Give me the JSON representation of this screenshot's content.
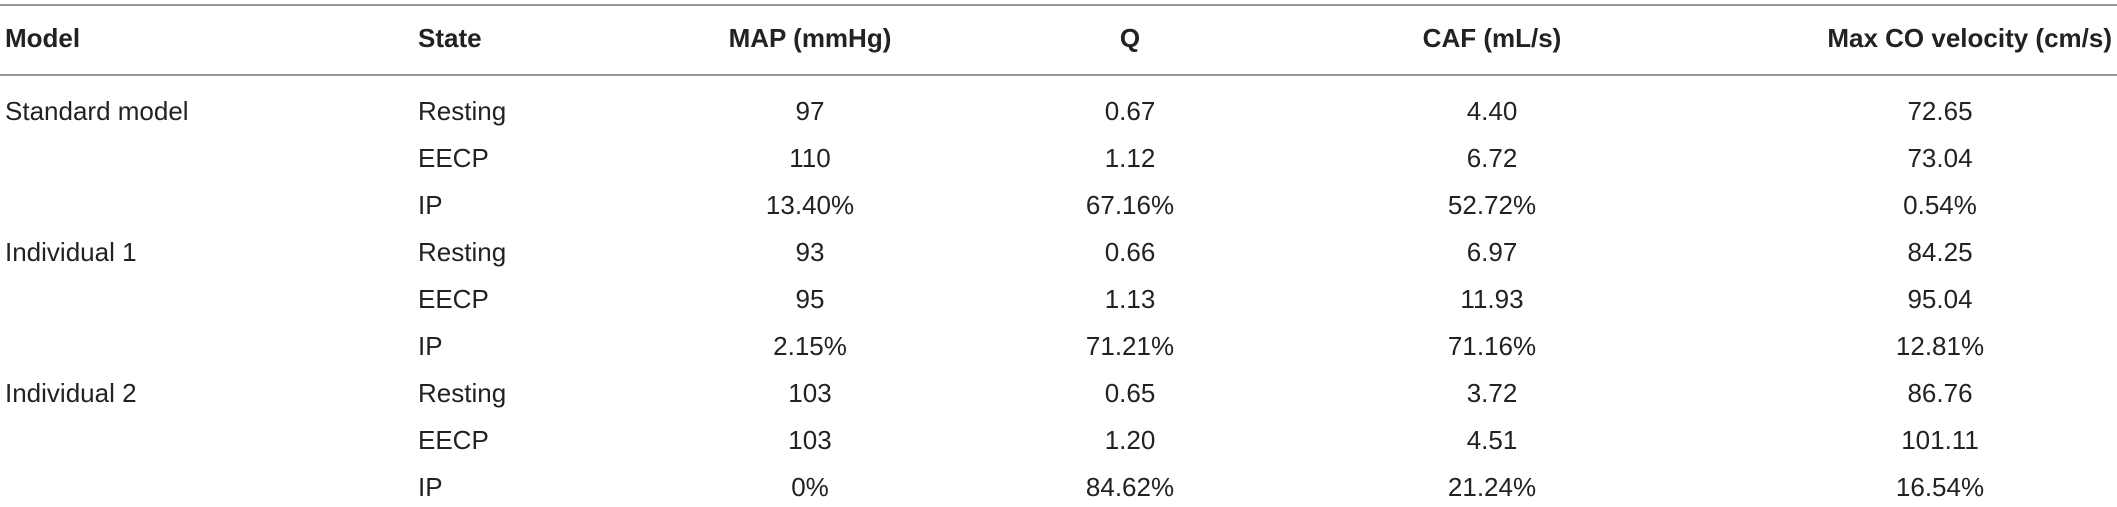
{
  "table": {
    "header": [
      "Model",
      "State",
      "MAP (mmHg)",
      "Q",
      "CAF (mL/s)",
      "Max CO velocity (cm/s)"
    ],
    "groups": [
      {
        "model": "Standard model",
        "rows": [
          [
            "Resting",
            "97",
            "0.67",
            "4.40",
            "72.65"
          ],
          [
            "EECP",
            "110",
            "1.12",
            "6.72",
            "73.04"
          ],
          [
            "IP",
            "13.40%",
            "67.16%",
            "52.72%",
            "0.54%"
          ]
        ]
      },
      {
        "model": "Individual 1",
        "rows": [
          [
            "Resting",
            "93",
            "0.66",
            "6.97",
            "84.25"
          ],
          [
            "EECP",
            "95",
            "1.13",
            "11.93",
            "95.04"
          ],
          [
            "IP",
            "2.15%",
            "71.21%",
            "71.16%",
            "12.81%"
          ]
        ]
      },
      {
        "model": "Individual 2",
        "rows": [
          [
            "Resting",
            "103",
            "0.65",
            "3.72",
            "86.76"
          ],
          [
            "EECP",
            "103",
            "1.20",
            "4.51",
            "101.11"
          ],
          [
            "IP",
            "0%",
            "84.62%",
            "21.24%",
            "16.54%"
          ]
        ]
      }
    ]
  }
}
